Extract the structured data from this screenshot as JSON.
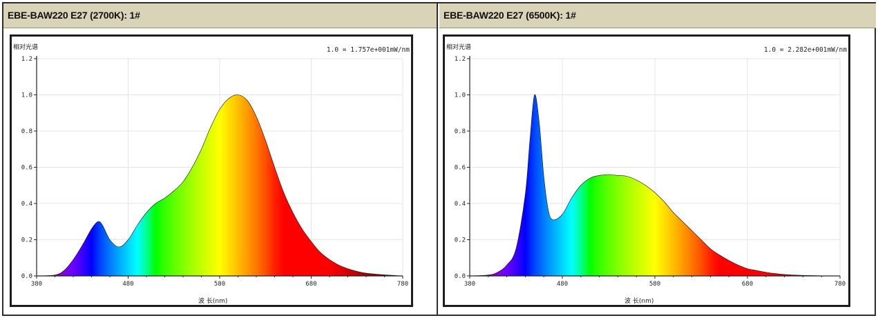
{
  "colors": {
    "header_bg": "#d9d3b8",
    "border": "#1c1c1c",
    "axis": "#222222",
    "grid": "#e5e5e5",
    "background": "#ffffff"
  },
  "chart_data": [
    {
      "type": "area",
      "title": "EBE-BAW220 E27 (2700K): 1#",
      "ylabel": "相对光谱",
      "xlabel": "波 长(nm)",
      "normalization": "1.0 = 1.757e+001mW/nm",
      "xlim": [
        380,
        780
      ],
      "ylim": [
        0,
        1.2
      ],
      "xticks": [
        "380",
        "480",
        "580",
        "680",
        "780"
      ],
      "yticks": [
        "0.0",
        "0.2",
        "0.4",
        "0.6",
        "0.8",
        "1.0",
        "1.2"
      ],
      "grid": true,
      "fill": "visible-spectrum gradient",
      "x": [
        380,
        400,
        410,
        420,
        430,
        440,
        447,
        452,
        460,
        470,
        480,
        490,
        500,
        510,
        520,
        530,
        540,
        550,
        560,
        570,
        580,
        590,
        600,
        610,
        620,
        630,
        640,
        650,
        660,
        670,
        680,
        690,
        700,
        710,
        720,
        730,
        740,
        750,
        760,
        770,
        780
      ],
      "y": [
        0.0,
        0.005,
        0.03,
        0.09,
        0.17,
        0.26,
        0.3,
        0.28,
        0.2,
        0.16,
        0.2,
        0.28,
        0.35,
        0.4,
        0.43,
        0.47,
        0.52,
        0.6,
        0.7,
        0.82,
        0.92,
        0.98,
        1.0,
        0.97,
        0.88,
        0.75,
        0.6,
        0.46,
        0.35,
        0.26,
        0.19,
        0.13,
        0.09,
        0.06,
        0.04,
        0.025,
        0.015,
        0.01,
        0.006,
        0.003,
        0.0
      ]
    },
    {
      "type": "area",
      "title": "EBE-BAW220 E27 (6500K): 1#",
      "ylabel": "相对光谱",
      "xlabel": "波 长(nm)",
      "normalization": "1.0 = 2.282e+001mW/nm",
      "xlim": [
        380,
        780
      ],
      "ylim": [
        0,
        1.2
      ],
      "xticks": [
        "380",
        "480",
        "580",
        "680",
        "780"
      ],
      "yticks": [
        "0.0",
        "0.2",
        "0.4",
        "0.6",
        "0.8",
        "1.0",
        "1.2"
      ],
      "grid": true,
      "fill": "visible-spectrum gradient",
      "x": [
        380,
        400,
        410,
        420,
        430,
        440,
        445,
        450,
        455,
        460,
        465,
        470,
        480,
        490,
        500,
        510,
        520,
        530,
        540,
        550,
        560,
        570,
        580,
        590,
        600,
        610,
        620,
        630,
        640,
        650,
        660,
        670,
        680,
        690,
        700,
        710,
        720,
        730,
        740,
        750,
        760,
        770,
        780
      ],
      "y": [
        0.0,
        0.005,
        0.02,
        0.06,
        0.15,
        0.45,
        0.75,
        1.0,
        0.85,
        0.55,
        0.36,
        0.31,
        0.34,
        0.43,
        0.5,
        0.54,
        0.555,
        0.56,
        0.555,
        0.55,
        0.53,
        0.5,
        0.46,
        0.41,
        0.35,
        0.3,
        0.25,
        0.2,
        0.15,
        0.115,
        0.085,
        0.06,
        0.04,
        0.03,
        0.02,
        0.013,
        0.008,
        0.005,
        0.003,
        0.002,
        0.001,
        0.0005,
        0.0
      ]
    }
  ]
}
